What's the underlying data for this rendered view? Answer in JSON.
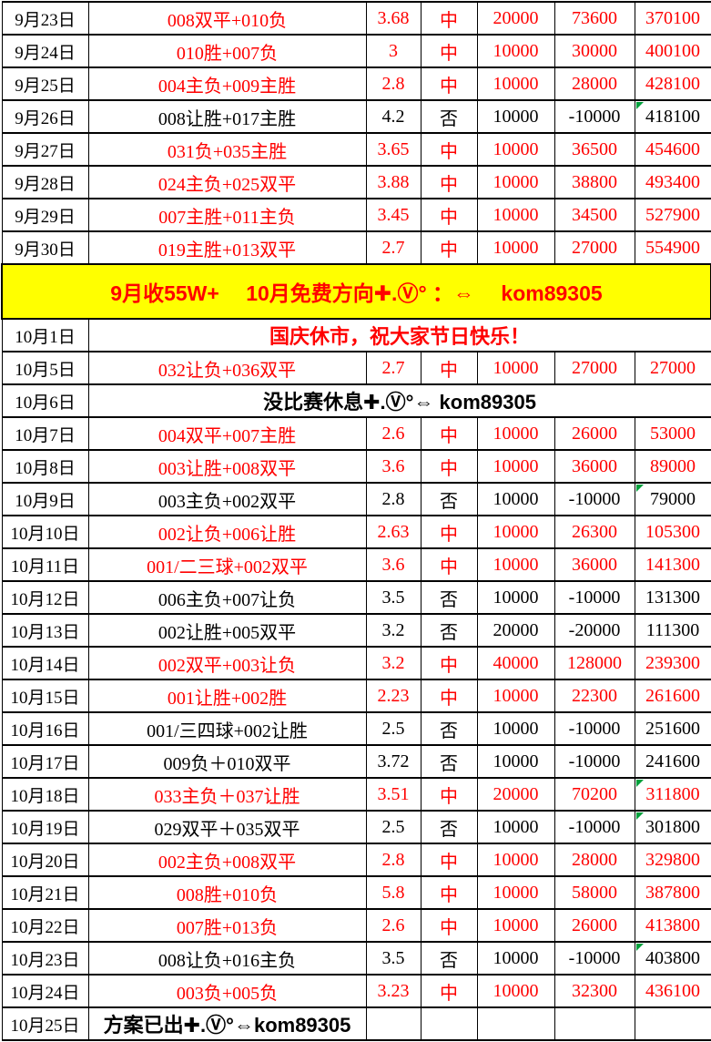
{
  "table": {
    "columns": [
      "date",
      "bet",
      "odds",
      "result",
      "stake",
      "profit",
      "total"
    ],
    "colors": {
      "win_text": "#ff0000",
      "lose_text": "#000000",
      "banner_bg": "#ffff00",
      "banner_text": "#ff0000",
      "marker_green": "#00a03c"
    },
    "rows": [
      {
        "type": "bet",
        "date": "9月23日",
        "bet": "008双平+010负",
        "odds": "3.68",
        "result": "中",
        "stake": "20000",
        "profit": "73600",
        "total": "370100",
        "win": true,
        "marker": false
      },
      {
        "type": "bet",
        "date": "9月24日",
        "bet": "010胜+007负",
        "odds": "3",
        "result": "中",
        "stake": "10000",
        "profit": "30000",
        "total": "400100",
        "win": true,
        "marker": false
      },
      {
        "type": "bet",
        "date": "9月25日",
        "bet": "004主负+009主胜",
        "odds": "2.8",
        "result": "中",
        "stake": "10000",
        "profit": "28000",
        "total": "428100",
        "win": true,
        "marker": false
      },
      {
        "type": "bet",
        "date": "9月26日",
        "bet": "008让胜+017主胜",
        "odds": "4.2",
        "result": "否",
        "stake": "10000",
        "profit": "-10000",
        "total": "418100",
        "win": false,
        "marker": true
      },
      {
        "type": "bet",
        "date": "9月27日",
        "bet": "031负+035主胜",
        "odds": "3.65",
        "result": "中",
        "stake": "10000",
        "profit": "36500",
        "total": "454600",
        "win": true,
        "marker": false
      },
      {
        "type": "bet",
        "date": "9月28日",
        "bet": "024主负+025双平",
        "odds": "3.88",
        "result": "中",
        "stake": "10000",
        "profit": "38800",
        "total": "493400",
        "win": true,
        "marker": false
      },
      {
        "type": "bet",
        "date": "9月29日",
        "bet": "007主胜+011主负",
        "odds": "3.45",
        "result": "中",
        "stake": "10000",
        "profit": "34500",
        "total": "527900",
        "win": true,
        "marker": false
      },
      {
        "type": "bet",
        "date": "9月30日",
        "bet": "019主胜+013双平",
        "odds": "2.7",
        "result": "中",
        "stake": "10000",
        "profit": "27000",
        "total": "554900",
        "win": true,
        "marker": false
      },
      {
        "type": "banner",
        "text": "9月收55W+　 10月免费方向✚.Ⓥ° ：⇔ 　kom89305"
      },
      {
        "type": "note",
        "date": "10月1日",
        "text": "国庆休市，祝大家节日快乐！",
        "color": "red"
      },
      {
        "type": "bet",
        "date": "10月5日",
        "bet": "032让负+036双平",
        "odds": "2.7",
        "result": "中",
        "stake": "10000",
        "profit": "27000",
        "total": "27000",
        "win": true,
        "marker": false
      },
      {
        "type": "note",
        "date": "10月6日",
        "text": "没比赛休息✚.Ⓥ°⇔ kom89305",
        "color": "black"
      },
      {
        "type": "bet",
        "date": "10月7日",
        "bet": "004双平+007主胜",
        "odds": "2.6",
        "result": "中",
        "stake": "10000",
        "profit": "26000",
        "total": "53000",
        "win": true,
        "marker": false
      },
      {
        "type": "bet",
        "date": "10月8日",
        "bet": "003让胜+008双平",
        "odds": "3.6",
        "result": "中",
        "stake": "10000",
        "profit": "36000",
        "total": "89000",
        "win": true,
        "marker": false
      },
      {
        "type": "bet",
        "date": "10月9日",
        "bet": "003主负+002双平",
        "odds": "2.8",
        "result": "否",
        "stake": "10000",
        "profit": "-10000",
        "total": "79000",
        "win": false,
        "marker": true
      },
      {
        "type": "bet",
        "date": "10月10日",
        "bet": "002让负+006让胜",
        "odds": "2.63",
        "result": "中",
        "stake": "10000",
        "profit": "26300",
        "total": "105300",
        "win": true,
        "marker": false
      },
      {
        "type": "bet",
        "date": "10月11日",
        "bet": "001/二三球+002双平",
        "odds": "3.6",
        "result": "中",
        "stake": "10000",
        "profit": "36000",
        "total": "141300",
        "win": true,
        "marker": false
      },
      {
        "type": "bet",
        "date": "10月12日",
        "bet": "006主负+007让负",
        "odds": "3.5",
        "result": "否",
        "stake": "10000",
        "profit": "-10000",
        "total": "131300",
        "win": false,
        "marker": false
      },
      {
        "type": "bet",
        "date": "10月13日",
        "bet": "002让胜+005双平",
        "odds": "3.2",
        "result": "否",
        "stake": "20000",
        "profit": "-20000",
        "total": "111300",
        "win": false,
        "marker": false
      },
      {
        "type": "bet",
        "date": "10月14日",
        "bet": "002双平+003让负",
        "odds": "3.2",
        "result": "中",
        "stake": "40000",
        "profit": "128000",
        "total": "239300",
        "win": true,
        "marker": false
      },
      {
        "type": "bet",
        "date": "10月15日",
        "bet": "001让胜+002胜",
        "odds": "2.23",
        "result": "中",
        "stake": "10000",
        "profit": "22300",
        "total": "261600",
        "win": true,
        "marker": false
      },
      {
        "type": "bet",
        "date": "10月16日",
        "bet": "001/三四球+002让胜",
        "odds": "2.5",
        "result": "否",
        "stake": "10000",
        "profit": "-10000",
        "total": "251600",
        "win": false,
        "marker": false
      },
      {
        "type": "bet",
        "date": "10月17日",
        "bet": "009负＋010双平",
        "odds": "3.72",
        "result": "否",
        "stake": "10000",
        "profit": "-10000",
        "total": "241600",
        "win": false,
        "marker": false
      },
      {
        "type": "bet",
        "date": "10月18日",
        "bet": "033主负＋037让胜",
        "odds": "3.51",
        "result": "中",
        "stake": "20000",
        "profit": "70200",
        "total": "311800",
        "win": true,
        "marker": true
      },
      {
        "type": "bet",
        "date": "10月19日",
        "bet": "029双平＋035双平",
        "odds": "2.5",
        "result": "否",
        "stake": "10000",
        "profit": "-10000",
        "total": "301800",
        "win": false,
        "marker": true
      },
      {
        "type": "bet",
        "date": "10月20日",
        "bet": "002主负+008双平",
        "odds": "2.8",
        "result": "中",
        "stake": "10000",
        "profit": "28000",
        "total": "329800",
        "win": true,
        "marker": false
      },
      {
        "type": "bet",
        "date": "10月21日",
        "bet": "008胜+010负",
        "odds": "5.8",
        "result": "中",
        "stake": "10000",
        "profit": "58000",
        "total": "387800",
        "win": true,
        "marker": false
      },
      {
        "type": "bet",
        "date": "10月22日",
        "bet": "007胜+013负",
        "odds": "2.6",
        "result": "中",
        "stake": "10000",
        "profit": "26000",
        "total": "413800",
        "win": true,
        "marker": false
      },
      {
        "type": "bet",
        "date": "10月23日",
        "bet": "008让负+016主负",
        "odds": "3.5",
        "result": "否",
        "stake": "10000",
        "profit": "-10000",
        "total": "403800",
        "win": false,
        "marker": false,
        "total_marker": true
      },
      {
        "type": "bet",
        "date": "10月24日",
        "bet": "003负+005负",
        "odds": "3.23",
        "result": "中",
        "stake": "10000",
        "profit": "32300",
        "total": "436100",
        "win": true,
        "marker": false
      },
      {
        "type": "note2",
        "date": "10月25日",
        "text": "方案已出✚.Ⓥ°⇔kom89305",
        "empty_cells": 5
      }
    ]
  }
}
